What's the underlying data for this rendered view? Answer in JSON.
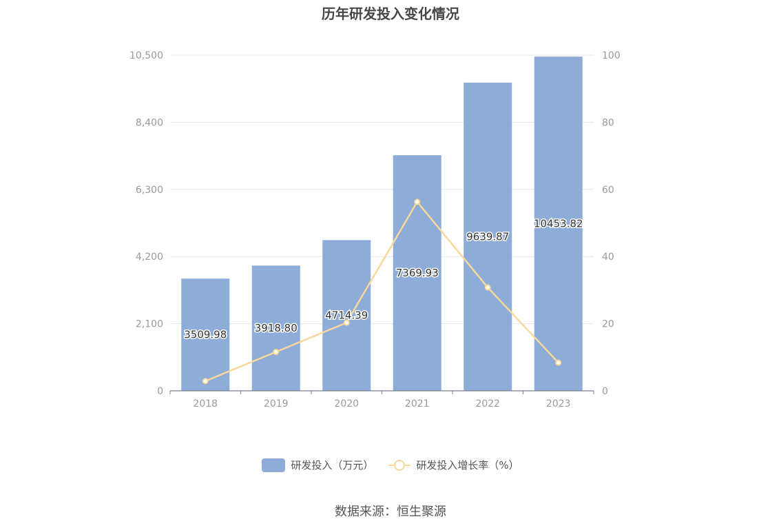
{
  "chart_data": {
    "type": "bar",
    "title": "历年研发投入变化情况",
    "categories": [
      "2018",
      "2019",
      "2020",
      "2021",
      "2022",
      "2023"
    ],
    "series": [
      {
        "name": "研发投入（万元）",
        "type": "bar",
        "axis": "left",
        "values": [
          3509.98,
          3918.8,
          4714.39,
          7369.93,
          9639.87,
          10453.82
        ],
        "labels": [
          "3509.98",
          "3918.80",
          "4714.39",
          "7369.93",
          "9639.87",
          "10453.82"
        ],
        "color": "#8eacd8"
      },
      {
        "name": "研发投入增长率（%）",
        "type": "line",
        "axis": "right",
        "values": [
          2.9,
          11.6,
          20.3,
          56.3,
          30.8,
          8.4
        ],
        "color": "#f8d99b"
      }
    ],
    "y_left": {
      "ticks": [
        "0",
        "2,100",
        "4,200",
        "6,300",
        "8,400",
        "10,500"
      ],
      "range": [
        0,
        10500
      ]
    },
    "y_right": {
      "ticks": [
        "0",
        "20",
        "40",
        "60",
        "80",
        "100"
      ],
      "range": [
        0,
        100
      ]
    },
    "grid": true,
    "legend_position": "bottom-center"
  },
  "source": "数据来源：恒生聚源",
  "colors": {
    "bar": "#8eacd8",
    "line": "#f8d99b",
    "grid": "#e3e6f0",
    "axis": "#999999"
  }
}
